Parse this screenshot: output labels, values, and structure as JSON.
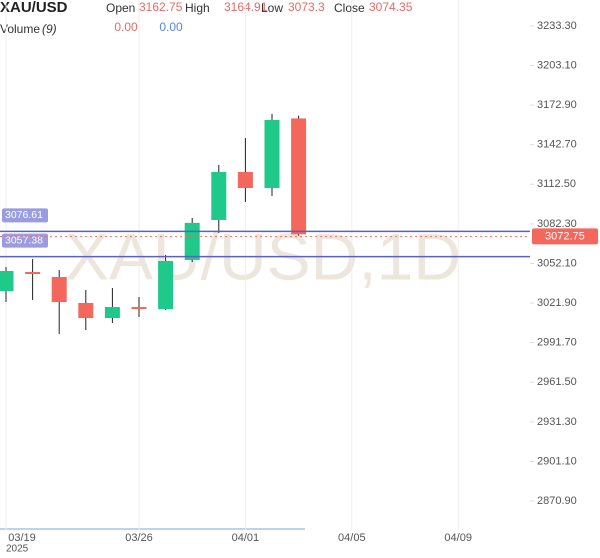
{
  "chart_data": {
    "type": "candlestick",
    "title": "XAU/USD",
    "header_labels": [
      "Open",
      "High",
      "Low",
      "Close"
    ],
    "header_values": [
      3162.75,
      3164.91,
      3073.3,
      3074.35
    ],
    "volume_label": "Volume",
    "volume_period": "(9)",
    "volume_values": [
      {
        "value": 0,
        "label": "0.00"
      },
      {
        "value": 0,
        "label": "0.00"
      }
    ],
    "watermark": "XAU/USD,1D",
    "year_label": "2025",
    "categories": [
      "03/19",
      null,
      null,
      null,
      null,
      "03/26",
      null,
      null,
      null,
      "04/01",
      null,
      null,
      null,
      "04/05",
      null,
      null,
      null,
      "04/09"
    ],
    "open": [
      3031.1,
      3045.6,
      3041.8,
      3022.0,
      3010.5,
      3018.9,
      3017.4,
      3054.8,
      3085.3,
      3121.9,
      3109.7,
      3162.75,
      null,
      null,
      null,
      null,
      null,
      null
    ],
    "high": [
      3049.4,
      3055.5,
      3047.1,
      3031.9,
      3033.4,
      3026.5,
      3058.6,
      3086.8,
      3127.3,
      3147.8,
      3166.2,
      3164.91,
      null,
      null,
      null,
      null,
      null,
      null
    ],
    "low": [
      3022.7,
      3024.3,
      2998.3,
      3001.4,
      3006.7,
      3011.3,
      3016.6,
      3053.2,
      3075.4,
      3099.0,
      3103.6,
      3073.3,
      null,
      null,
      null,
      null,
      null,
      null
    ],
    "close": [
      3046.4,
      3044.1,
      3022.7,
      3010.5,
      3018.9,
      3017.4,
      3054.0,
      3083.1,
      3121.9,
      3109.7,
      3161.6,
      3074.35,
      null,
      null,
      null,
      null,
      null,
      null
    ],
    "up_color": "#1fc98a",
    "down_color": "#f4675d",
    "levels": [
      {
        "value": 3076.61,
        "color": "#5c5fc4"
      },
      {
        "value": 3057.38,
        "color": "#5c5fc4"
      }
    ],
    "last_price": 3072.75,
    "ylim": [
      2848.8,
      3253.1
    ],
    "yticks": [
      {
        "value": 3233.3,
        "label": "3233.30"
      },
      {
        "value": 3203.1,
        "label": "3203.10"
      },
      {
        "value": 3172.9,
        "label": "3172.90"
      },
      {
        "value": 3142.7,
        "label": "3142.70"
      },
      {
        "value": 3112.5,
        "label": "3112.50"
      },
      {
        "value": 3082.3,
        "label": "3082.30"
      },
      {
        "value": 3052.1,
        "label": "3052.10"
      },
      {
        "value": 3021.9,
        "label": "3021.90"
      },
      {
        "value": 2991.7,
        "label": "2991.70"
      },
      {
        "value": 2961.5,
        "label": "2961.50"
      },
      {
        "value": 2931.3,
        "label": "2931.30"
      },
      {
        "value": 2901.1,
        "label": "2901.10"
      },
      {
        "value": 2870.9,
        "label": "2870.90"
      }
    ],
    "grid": true
  }
}
